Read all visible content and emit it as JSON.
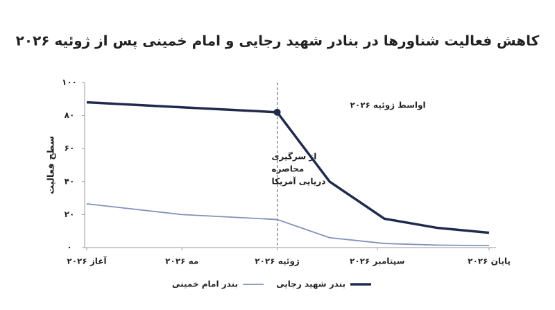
{
  "chart_data": {
    "type": "line",
    "title": "کاهش فعالیت شناورها در بنادر شهید رجایی و امام خمینی پس از ژوئیه ۲۰۲۶",
    "y_label": "سطح فعالیت",
    "x": [
      0,
      2,
      4,
      5.1,
      6.25,
      7.35,
      8.45
    ],
    "xlim": [
      0,
      8.45
    ],
    "xticks": [
      {
        "value": 0,
        "label": "آغاز ۲۰۲۶"
      },
      {
        "value": 2,
        "label": "مه ۲۰۲۶"
      },
      {
        "value": 4,
        "label": "ژوئیه ۲۰۲۶"
      },
      {
        "value": 6.1,
        "label": "سپتامبر ۲۰۲۶"
      },
      {
        "value": 8.45,
        "label": "پایان ۲۰۲۶"
      }
    ],
    "ylim": [
      0,
      100
    ],
    "yticks": [
      {
        "value": 0,
        "label": "۰"
      },
      {
        "value": 20,
        "label": "۲۰"
      },
      {
        "value": 40,
        "label": "۴۰"
      },
      {
        "value": 60,
        "label": "۶۰"
      },
      {
        "value": 80,
        "label": "۸۰"
      },
      {
        "value": 100,
        "label": "۱۰۰"
      }
    ],
    "series": [
      {
        "name": "بندر شهید رجایی",
        "color": "#1f2a4d",
        "values": [
          88,
          85,
          82,
          40,
          17.5,
          12,
          9
        ]
      },
      {
        "name": "بندر امام خمینی",
        "color": "#7f93b8",
        "values": [
          26.5,
          20,
          17,
          6,
          2.5,
          1.5,
          1.2
        ]
      }
    ],
    "event_x": 4,
    "event_label": [
      "از سرگیری",
      "محاصره",
      "دریایی آمریکا"
    ],
    "point_label": "اواسط ژوئیه ۲۰۲۶"
  }
}
